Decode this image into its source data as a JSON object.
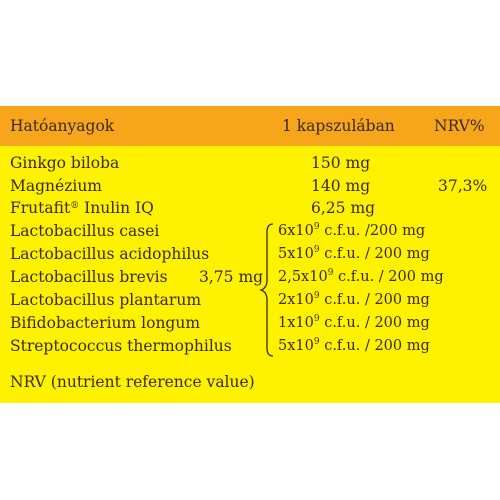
{
  "header": {
    "col1": "Hatóanyagok",
    "col2": "1 kapszulában",
    "col3": "NRV%"
  },
  "rows": [
    {
      "name": "Ginkgo biloba",
      "amount": "150 mg",
      "nrv": ""
    },
    {
      "name": "Magnézium",
      "amount": "140 mg",
      "nrv": "37,3%"
    },
    {
      "name": "Frutafit",
      "name_mark": "®",
      "name_suffix": " Inulin IQ",
      "amount": "6,25 mg",
      "nrv": ""
    }
  ],
  "probiotics": {
    "group_total": "3,75 mg",
    "items": [
      {
        "name": "Lactobacillus casei",
        "base": "6x10",
        "exp": "9",
        "rest": " c.f.u. /200 mg"
      },
      {
        "name": "Lactobacillus acidophilus",
        "base": "5x10",
        "exp": "9",
        "rest": " c.f.u. / 200 mg"
      },
      {
        "name": "Lactobacillus brevis",
        "base": "2,5x10",
        "exp": "9",
        "rest": " c.f.u. / 200 mg"
      },
      {
        "name": "Lactobacillus plantarum",
        "base": "2x10",
        "exp": "9",
        "rest": " c.f.u. / 200 mg"
      },
      {
        "name": "Bifidobacterium longum",
        "base": "1x10",
        "exp": "9",
        "rest": " c.f.u. / 200 mg"
      },
      {
        "name": "Streptococcus thermophilus",
        "base": "5x10",
        "exp": "9",
        "rest": " c.f.u. / 200 mg"
      }
    ]
  },
  "footnote": "NRV (nutrient reference value)",
  "colors": {
    "header_bg": "#f7a51a",
    "panel_bg": "#fff200",
    "text": "#3a2a1e"
  }
}
